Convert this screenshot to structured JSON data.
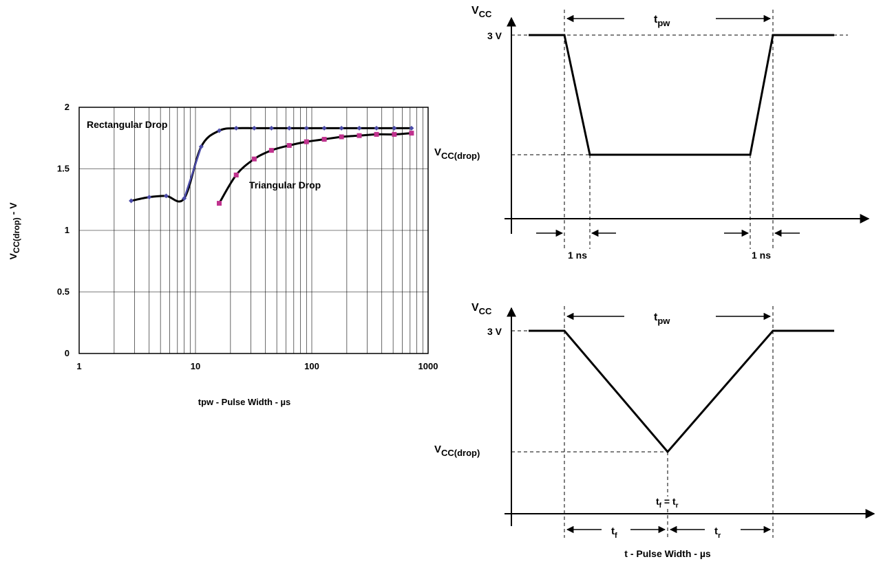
{
  "chart_data": [
    {
      "type": "line",
      "xscale": "log",
      "xlim": [
        1,
        1000
      ],
      "ylim": [
        0,
        2
      ],
      "xticks": [
        "1",
        "10",
        "100",
        "1000"
      ],
      "yticks": [
        "0",
        "0.5",
        "1",
        "1.5",
        "2"
      ],
      "xlabel": "tpw - Pulse Width - µs",
      "ylabel_main": "V",
      "ylabel_sub": "CC(drop)",
      "ylabel_suffix": " - V",
      "grid": true,
      "series": [
        {
          "name": "Rectangular Drop",
          "color": "#4b4ba8",
          "marker": "diamond",
          "x": [
            2.8,
            4.0,
            5.6,
            8.0,
            11.2,
            16,
            22.4,
            32,
            45,
            64,
            90,
            128,
            180,
            256,
            360,
            512,
            720
          ],
          "y": [
            1.24,
            1.27,
            1.28,
            1.26,
            1.68,
            1.81,
            1.83,
            1.83,
            1.83,
            1.83,
            1.83,
            1.83,
            1.83,
            1.83,
            1.83,
            1.83,
            1.83
          ]
        },
        {
          "name": "Triangular Drop",
          "color": "#c0328e",
          "marker": "square",
          "x": [
            16,
            22.4,
            32,
            45,
            64,
            90,
            128,
            180,
            256,
            360,
            512,
            720
          ],
          "y": [
            1.22,
            1.45,
            1.58,
            1.65,
            1.69,
            1.72,
            1.74,
            1.76,
            1.77,
            1.78,
            1.78,
            1.79
          ]
        }
      ]
    }
  ],
  "diagrams": {
    "top": {
      "v_axis_main": "V",
      "v_axis_sub": "CC",
      "level_high": "3 V",
      "level_low_main": "V",
      "level_low_sub": "CC(drop)",
      "width_main": "t",
      "width_sub": "pw",
      "edge_left": "1 ns",
      "edge_right": "1 ns"
    },
    "bottom": {
      "v_axis_main": "V",
      "v_axis_sub": "CC",
      "level_high": "3 V",
      "level_low_main": "V",
      "level_low_sub": "CC(drop)",
      "width_main": "t",
      "width_sub": "pw",
      "eq_tf_main": "t",
      "eq_tf_sub": "f",
      "eq_mid": " = t",
      "eq_tr_sub": "r",
      "fall_main": "t",
      "fall_sub": "f",
      "rise_main": "t",
      "rise_sub": "r",
      "xlabel": "t - Pulse Width - µs"
    }
  }
}
